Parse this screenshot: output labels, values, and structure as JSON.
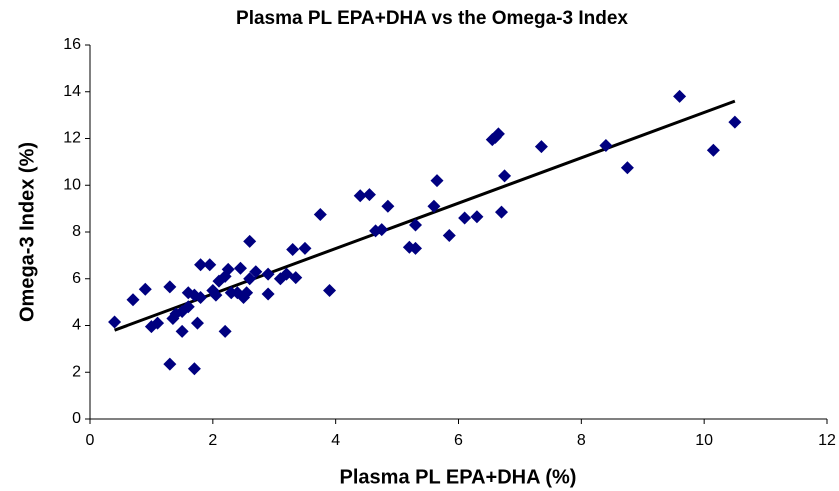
{
  "chart_data": {
    "type": "scatter",
    "title": "Plasma PL EPA+DHA vs the Omega-3 Index",
    "x_label": "Plasma PL EPA+DHA (%)",
    "y_label": "Omega-3 Index (%)",
    "color": "#000080",
    "xlim": [
      0,
      12
    ],
    "ylim": [
      0,
      16
    ],
    "xticks": [
      0,
      2,
      4,
      6,
      8,
      10,
      12
    ],
    "yticks": [
      0,
      2,
      4,
      6,
      8,
      10,
      12,
      14,
      16
    ],
    "x": [
      0.4,
      0.7,
      0.9,
      1.0,
      1.1,
      1.3,
      1.3,
      1.35,
      1.4,
      1.5,
      1.5,
      1.6,
      1.6,
      1.7,
      1.7,
      1.75,
      1.8,
      1.8,
      1.95,
      2.0,
      2.05,
      2.1,
      2.2,
      2.2,
      2.25,
      2.3,
      2.4,
      2.45,
      2.5,
      2.55,
      2.6,
      2.6,
      2.7,
      2.9,
      2.9,
      3.1,
      3.2,
      3.3,
      3.35,
      3.5,
      3.75,
      3.9,
      4.4,
      4.55,
      4.65,
      4.75,
      4.85,
      5.2,
      5.3,
      5.3,
      5.6,
      5.65,
      5.85,
      6.1,
      6.3,
      6.55,
      6.6,
      6.65,
      6.7,
      6.75,
      7.35,
      8.4,
      8.75,
      9.6,
      10.15,
      10.5
    ],
    "y": [
      4.15,
      5.1,
      5.55,
      3.95,
      4.1,
      5.65,
      2.35,
      4.3,
      4.5,
      3.75,
      4.6,
      4.8,
      5.4,
      5.3,
      2.15,
      4.1,
      5.2,
      6.6,
      6.6,
      5.5,
      5.3,
      5.9,
      6.1,
      3.75,
      6.4,
      5.4,
      5.4,
      6.45,
      5.2,
      5.4,
      7.6,
      6.0,
      6.3,
      5.35,
      6.2,
      6.0,
      6.2,
      7.25,
      6.05,
      7.3,
      8.75,
      5.5,
      9.55,
      9.6,
      8.05,
      8.1,
      9.1,
      7.35,
      8.3,
      7.3,
      9.1,
      10.2,
      7.85,
      8.6,
      8.65,
      11.95,
      12.05,
      12.2,
      8.85,
      10.4,
      11.65,
      11.7,
      10.75,
      13.8,
      11.5,
      12.7
    ],
    "trendline": {
      "x": [
        0.4,
        10.5
      ],
      "y": [
        3.8,
        13.6
      ],
      "color": "#000000"
    }
  }
}
